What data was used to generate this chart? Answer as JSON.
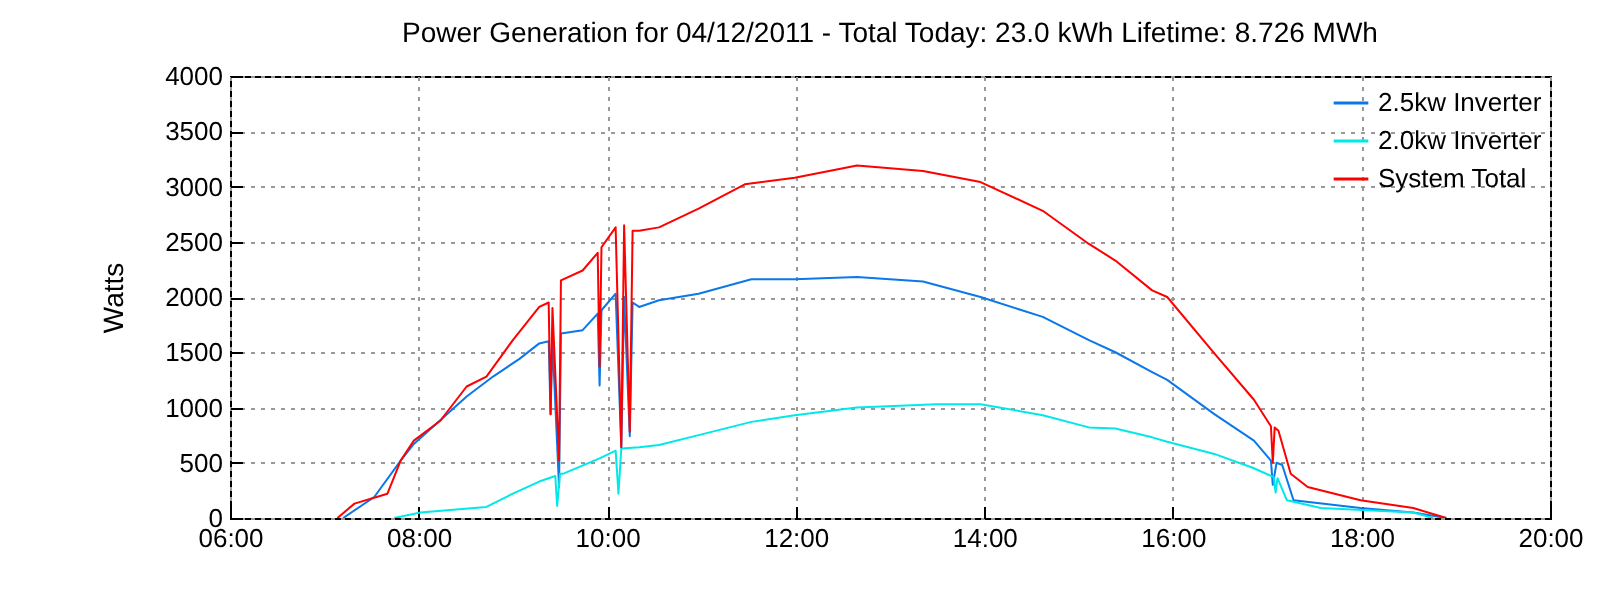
{
  "chart_data": {
    "type": "line",
    "title": "Power Generation for 04/12/2011 - Total Today: 23.0 kWh   Lifetime: 8.726 MWh",
    "ylabel": "Watts",
    "xlim": [
      6,
      20
    ],
    "xticks": [
      {
        "value": 6,
        "label": "06:00"
      },
      {
        "value": 8,
        "label": "08:00"
      },
      {
        "value": 10,
        "label": "10:00"
      },
      {
        "value": 12,
        "label": "12:00"
      },
      {
        "value": 14,
        "label": "14:00"
      },
      {
        "value": 16,
        "label": "16:00"
      },
      {
        "value": 18,
        "label": "18:00"
      },
      {
        "value": 20,
        "label": "20:00"
      }
    ],
    "ylim": [
      0,
      4000
    ],
    "yticks": [
      0,
      500,
      1000,
      1500,
      2000,
      2500,
      3000,
      3500,
      4000
    ],
    "grid": true,
    "legend": "top right",
    "series": [
      {
        "name": "2.5kw Inverter",
        "color": "#0a78e8",
        "x": [
          7.2,
          7.53,
          7.81,
          7.95,
          8.51,
          8.79,
          9.07,
          9.28,
          9.38,
          9.4,
          9.42,
          9.49,
          9.51,
          9.74,
          9.9,
          9.92,
          9.94,
          10.09,
          10.15,
          10.18,
          10.24,
          10.27,
          10.34,
          10.55,
          10.97,
          11.53,
          11.99,
          12.65,
          13.35,
          13.96,
          14.62,
          15.11,
          15.39,
          15.78,
          15.94,
          16.44,
          16.86,
          17.04,
          17.06,
          17.1,
          17.16,
          17.28,
          17.99,
          18.55,
          18.9
        ],
        "values": [
          0,
          190,
          520,
          670,
          1100,
          1280,
          1440,
          1580,
          1600,
          940,
          1600,
          280,
          1670,
          1700,
          1850,
          1200,
          1880,
          2030,
          640,
          2000,
          740,
          1950,
          1910,
          1970,
          2030,
          2160,
          2160,
          2180,
          2140,
          2000,
          1820,
          1610,
          1500,
          1320,
          1250,
          940,
          700,
          520,
          300,
          500,
          480,
          160,
          90,
          50,
          0
        ]
      },
      {
        "name": "2.0kw Inverter",
        "color": "#00e8e8",
        "x": [
          7.74,
          8.02,
          8.72,
          9.0,
          9.28,
          9.45,
          9.47,
          9.5,
          9.53,
          9.92,
          10.09,
          10.12,
          10.15,
          10.34,
          10.55,
          10.97,
          11.53,
          11.99,
          12.65,
          13.49,
          13.96,
          14.62,
          15.11,
          15.39,
          15.78,
          15.94,
          16.44,
          16.86,
          17.07,
          17.09,
          17.11,
          17.21,
          17.57,
          18.55,
          18.76
        ],
        "values": [
          0,
          50,
          100,
          220,
          330,
          380,
          110,
          400,
          400,
          540,
          610,
          220,
          630,
          640,
          660,
          750,
          870,
          930,
          1000,
          1030,
          1030,
          930,
          820,
          810,
          730,
          690,
          580,
          450,
          370,
          230,
          360,
          160,
          90,
          50,
          0
        ]
      },
      {
        "name": "System Total",
        "color": "#ff0000",
        "x": [
          7.14,
          7.32,
          7.67,
          7.81,
          7.95,
          8.23,
          8.51,
          8.72,
          9.0,
          9.28,
          9.38,
          9.4,
          9.42,
          9.49,
          9.51,
          9.74,
          9.9,
          9.92,
          9.94,
          10.09,
          10.15,
          10.18,
          10.24,
          10.27,
          10.34,
          10.55,
          10.97,
          11.46,
          11.99,
          12.65,
          13.35,
          13.96,
          14.62,
          15.11,
          15.39,
          15.78,
          15.94,
          16.44,
          16.86,
          17.04,
          17.06,
          17.08,
          17.12,
          17.25,
          17.43,
          17.99,
          18.55,
          18.9
        ],
        "values": [
          0,
          130,
          220,
          520,
          700,
          880,
          1190,
          1280,
          1610,
          1910,
          1950,
          940,
          1900,
          520,
          2150,
          2240,
          2400,
          1370,
          2450,
          2630,
          640,
          2650,
          780,
          2600,
          2600,
          2630,
          2800,
          3020,
          3080,
          3190,
          3140,
          3040,
          2780,
          2480,
          2330,
          2060,
          2000,
          1490,
          1070,
          830,
          500,
          820,
          790,
          400,
          280,
          160,
          90,
          0
        ]
      }
    ]
  }
}
